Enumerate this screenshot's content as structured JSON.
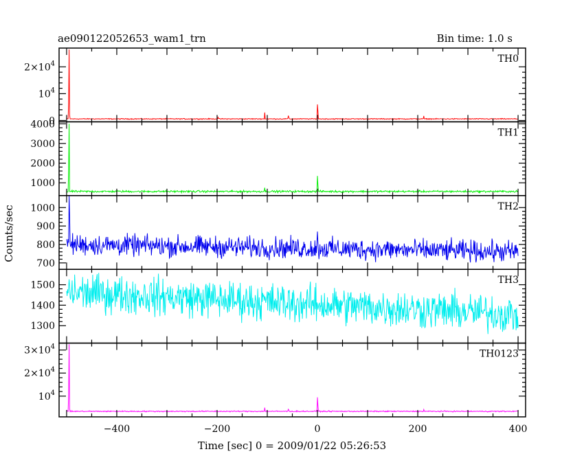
{
  "chart_data": {
    "type": "line",
    "title": "ae090122052653_wam1_trn",
    "subtitle": "Bin time: 1.0 s",
    "xlabel": "Time [sec] 0 = 2009/01/22 05:26:53",
    "ylabel": "Counts/sec",
    "xlim": [
      -515,
      415
    ],
    "x_ticks": [
      -400,
      -200,
      0,
      200,
      400
    ],
    "x_tick_labels": [
      "−400",
      "−200",
      "0",
      "200",
      "400"
    ],
    "grid": false,
    "panels": [
      {
        "name": "TH0",
        "color": "#ff0000",
        "ylim": [
          -500,
          27000
        ],
        "y_ticks": [
          {
            "v": 20000,
            "mant": "2×10",
            "exp": "4"
          },
          {
            "v": 10000,
            "mant": "10",
            "exp": "4"
          },
          {
            "v": 0,
            "mant": "0",
            "exp": ""
          }
        ],
        "baseline": 600,
        "noise": 80,
        "spikes": [
          [
            -495,
            26500
          ],
          [
            -496,
            6500
          ],
          [
            -494,
            2000
          ],
          [
            -105,
            3000
          ],
          [
            -58,
            1800
          ],
          [
            -57,
            1200
          ],
          [
            0,
            6000
          ],
          [
            1,
            3500
          ],
          [
            212,
            1700
          ],
          [
            -198,
            1200
          ]
        ]
      },
      {
        "name": "TH1",
        "color": "#00ee00",
        "ylim": [
          350,
          4100
        ],
        "y_ticks": [
          {
            "v": 4000,
            "mant": "4000",
            "exp": ""
          },
          {
            "v": 3000,
            "mant": "3000",
            "exp": ""
          },
          {
            "v": 2000,
            "mant": "2000",
            "exp": ""
          },
          {
            "v": 1000,
            "mant": "1000",
            "exp": ""
          }
        ],
        "baseline": 560,
        "noise": 25,
        "spikes": [
          [
            -495,
            4000
          ],
          [
            -496,
            1600
          ],
          [
            0,
            1350
          ],
          [
            1,
            900
          ],
          [
            -105,
            750
          ]
        ]
      },
      {
        "name": "TH2",
        "color": "#0000ee",
        "ylim": [
          665,
          1065
        ],
        "y_ticks": [
          {
            "v": 1000,
            "mant": "1000",
            "exp": ""
          },
          {
            "v": 900,
            "mant": "900",
            "exp": ""
          },
          {
            "v": 800,
            "mant": "800",
            "exp": ""
          },
          {
            "v": 700,
            "mant": "700",
            "exp": ""
          }
        ],
        "baseline": 800,
        "trend": -40,
        "noise": 28,
        "spikes": [
          [
            -495,
            1065
          ],
          [
            -494,
            960
          ],
          [
            0,
            870
          ]
        ]
      },
      {
        "name": "TH3",
        "color": "#00eeee",
        "ylim": [
          1215,
          1575
        ],
        "y_ticks": [
          {
            "v": 1500,
            "mant": "1500",
            "exp": ""
          },
          {
            "v": 1400,
            "mant": "1400",
            "exp": ""
          },
          {
            "v": 1300,
            "mant": "1300",
            "exp": ""
          }
        ],
        "baseline": 1465,
        "trend": -110,
        "noise": 45,
        "spikes": []
      },
      {
        "name": "TH0123",
        "color": "#ff00ff",
        "ylim": [
          1000,
          33000
        ],
        "y_ticks": [
          {
            "v": 30000,
            "mant": "3×10",
            "exp": "4"
          },
          {
            "v": 20000,
            "mant": "2×10",
            "exp": "4"
          },
          {
            "v": 10000,
            "mant": "10",
            "exp": "4"
          }
        ],
        "baseline": 3400,
        "noise": 120,
        "spikes": [
          [
            -495,
            32500
          ],
          [
            -496,
            10500
          ],
          [
            -494,
            4500
          ],
          [
            -105,
            5000
          ],
          [
            -58,
            4300
          ],
          [
            -57,
            3900
          ],
          [
            0,
            9500
          ],
          [
            1,
            6000
          ],
          [
            212,
            4200
          ]
        ]
      }
    ]
  }
}
